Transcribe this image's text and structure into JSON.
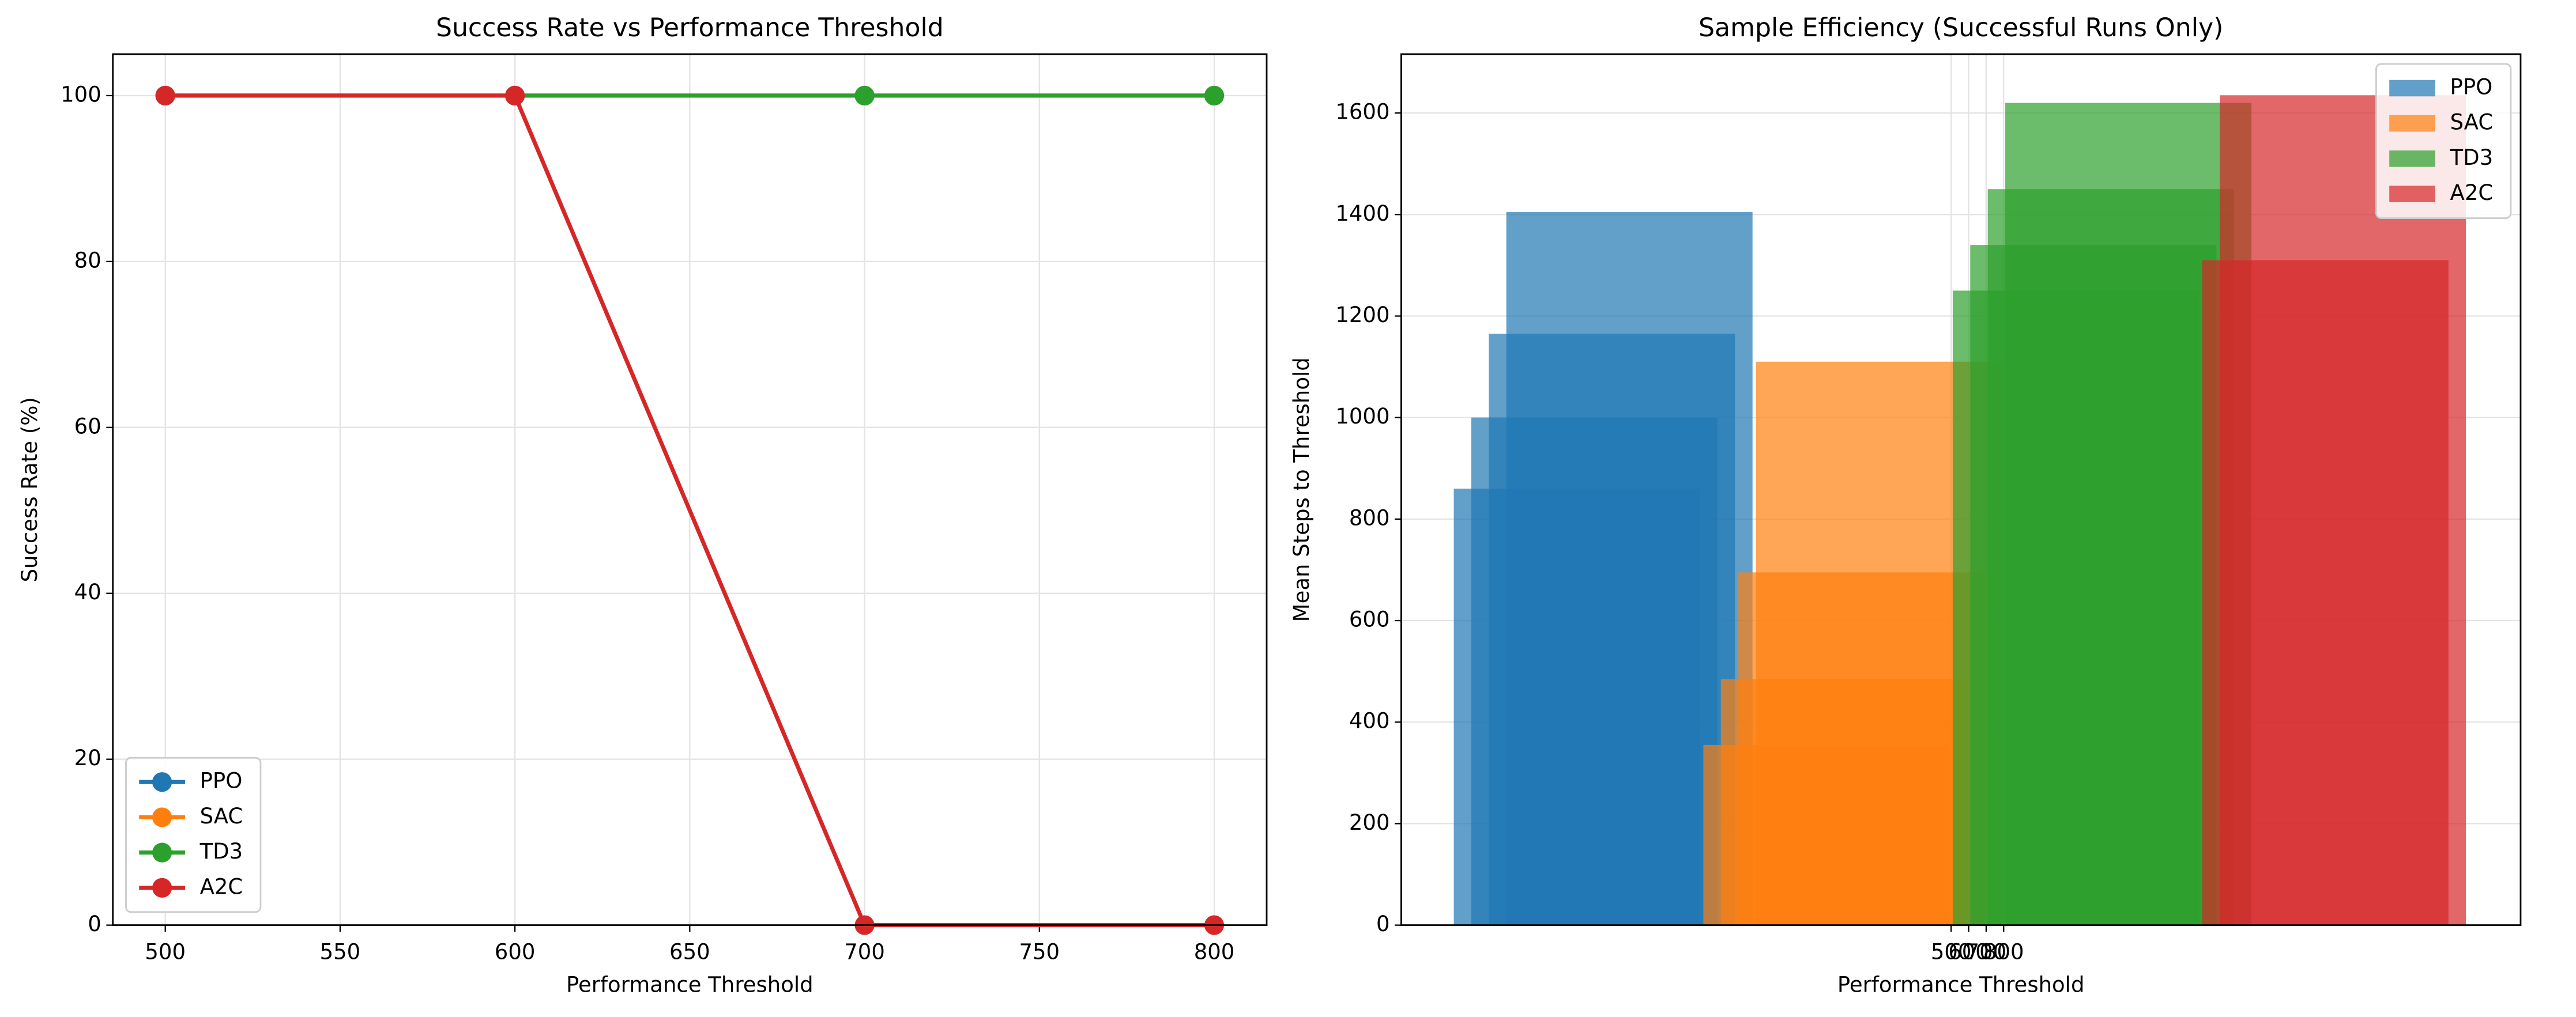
{
  "chart_data": [
    {
      "type": "line",
      "title": "Success Rate vs Performance Threshold",
      "xlabel": "Performance Threshold",
      "ylabel": "Success Rate (%)",
      "x": [
        500,
        600,
        700,
        800
      ],
      "series": [
        {
          "name": "PPO",
          "color": "#1f77b4",
          "values": [
            100,
            100,
            100,
            100
          ]
        },
        {
          "name": "SAC",
          "color": "#ff7f0e",
          "values": [
            100,
            100,
            100,
            100
          ]
        },
        {
          "name": "TD3",
          "color": "#2ca02c",
          "values": [
            100,
            100,
            100,
            100
          ]
        },
        {
          "name": "A2C",
          "color": "#d62728",
          "values": [
            100,
            100,
            0,
            0
          ]
        }
      ],
      "xlim": [
        485,
        815
      ],
      "xticks": [
        500,
        550,
        600,
        650,
        700,
        750,
        800
      ],
      "ylim": [
        0,
        105
      ],
      "yticks": [
        0,
        20,
        40,
        60,
        80,
        100
      ],
      "grid": true,
      "legend": "lower left"
    },
    {
      "type": "bar",
      "title": "Sample Efficiency (Successful Runs Only)",
      "xlabel": "Performance Threshold",
      "ylabel": "Mean Steps to Threshold",
      "series": [
        {
          "name": "PPO",
          "color": "#1f77b4",
          "x": [
            -1637,
            -1537,
            -1437,
            -1337
          ],
          "values": [
            860,
            1000,
            1165,
            1405
          ]
        },
        {
          "name": "SAC",
          "color": "#ff7f0e",
          "x": [
            -212,
            -112,
            -12,
            88
          ],
          "values": [
            355,
            485,
            695,
            1110
          ]
        },
        {
          "name": "TD3",
          "color": "#2ca02c",
          "x": [
            1212,
            1312,
            1412,
            1512
          ],
          "values": [
            1250,
            1340,
            1450,
            1620
          ]
        },
        {
          "name": "A2C",
          "color": "#d62728",
          "x": [
            2637,
            2737
          ],
          "values": [
            1310,
            1635
          ]
        }
      ],
      "xlim": [
        -2640,
        3752
      ],
      "xticks": [
        500,
        600,
        700,
        800
      ],
      "ylim": [
        0,
        1716
      ],
      "yticks": [
        0,
        200,
        400,
        600,
        800,
        1000,
        1200,
        1400,
        1600
      ],
      "grid": true,
      "legend": "upper right"
    }
  ]
}
